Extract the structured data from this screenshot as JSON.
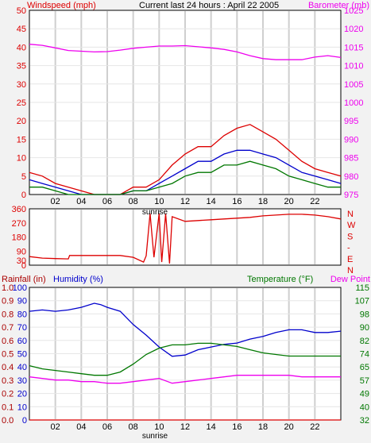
{
  "colors": {
    "red": "#dd0000",
    "magenta": "#ee00ee",
    "blue": "#0000cc",
    "green": "#007700",
    "dark_red": "#aa0000",
    "grid": "#cfcfcf"
  },
  "chart_data": [
    {
      "type": "line",
      "title": "Current last 24 hours : April 22 2005",
      "ylabel_left": "Windspeed (mph)",
      "ylabel_right": "Barometer (mb)",
      "x_ticks": [
        "02",
        "04",
        "06",
        "08",
        "10",
        "12",
        "14",
        "16",
        "18",
        "20",
        "22"
      ],
      "x_annotation": "sunrise",
      "ylim_left": [
        0,
        50
      ],
      "yticks_left": [
        0,
        5,
        10,
        15,
        20,
        25,
        30,
        35,
        40,
        45,
        50
      ],
      "ylim_right": [
        975,
        1025
      ],
      "yticks_right": [
        975,
        980,
        985,
        990,
        995,
        1000,
        1005,
        1010,
        1015,
        1020,
        1025
      ],
      "series": [
        {
          "axis": "right",
          "color": "magenta",
          "x": [
            0,
            1,
            2,
            3,
            4,
            5,
            6,
            7,
            8,
            9,
            10,
            11,
            12,
            13,
            14,
            15,
            16,
            17,
            18,
            19,
            20,
            21,
            22,
            23,
            24
          ],
          "values": [
            1015.8,
            1015.5,
            1014.8,
            1014.1,
            1013.9,
            1013.7,
            1013.8,
            1014.2,
            1014.7,
            1015.0,
            1015.3,
            1015.3,
            1015.4,
            1015.1,
            1014.8,
            1014.4,
            1013.7,
            1012.7,
            1011.9,
            1011.6,
            1011.6,
            1011.6,
            1012.3,
            1012.7,
            1012.2
          ]
        },
        {
          "axis": "left",
          "color": "red",
          "x": [
            0,
            1,
            2,
            3,
            4,
            5,
            6,
            7,
            8,
            9,
            10,
            11,
            12,
            13,
            14,
            15,
            16,
            17,
            18,
            19,
            20,
            21,
            22,
            23,
            24
          ],
          "values": [
            6,
            5,
            3,
            2,
            1,
            0,
            0,
            0,
            2,
            2,
            4,
            8,
            11,
            13,
            13,
            16,
            18,
            19,
            17,
            15,
            12,
            9,
            7,
            6,
            5
          ]
        },
        {
          "axis": "left",
          "color": "blue",
          "x": [
            0,
            1,
            2,
            3,
            4,
            5,
            6,
            7,
            8,
            9,
            10,
            11,
            12,
            13,
            14,
            15,
            16,
            17,
            18,
            19,
            20,
            21,
            22,
            23,
            24
          ],
          "values": [
            4,
            3,
            2,
            1,
            0,
            0,
            0,
            0,
            1,
            1,
            3,
            5,
            7,
            9,
            9,
            11,
            12,
            12,
            11,
            10,
            8,
            6,
            5,
            4,
            3
          ]
        },
        {
          "axis": "left",
          "color": "green",
          "x": [
            0,
            1,
            2,
            3,
            4,
            5,
            6,
            7,
            8,
            9,
            10,
            11,
            12,
            13,
            14,
            15,
            16,
            17,
            18,
            19,
            20,
            21,
            22,
            23,
            24
          ],
          "values": [
            2,
            2,
            1,
            0,
            0,
            0,
            0,
            0,
            1,
            1,
            2,
            3,
            5,
            6,
            6,
            8,
            8,
            9,
            8,
            7,
            5,
            4,
            3,
            2,
            2
          ]
        }
      ]
    },
    {
      "type": "line",
      "ylim": [
        0,
        360
      ],
      "yticks_left": [
        0,
        30,
        90,
        180,
        270,
        360
      ],
      "right_labels": [
        "N",
        "W",
        "S",
        "-",
        "E",
        "N"
      ],
      "series": [
        {
          "color": "red",
          "x": [
            0,
            1,
            2,
            3,
            3.1,
            4,
            5,
            6,
            7,
            8,
            8.8,
            9,
            9.3,
            9.6,
            10,
            10.2,
            10.5,
            10.8,
            11,
            12,
            13,
            14,
            15,
            16,
            17,
            18,
            19,
            20,
            21,
            22,
            23,
            24
          ],
          "values": [
            55,
            45,
            42,
            40,
            62,
            62,
            62,
            62,
            62,
            50,
            20,
            60,
            330,
            50,
            330,
            20,
            330,
            10,
            310,
            280,
            285,
            290,
            295,
            300,
            305,
            315,
            320,
            325,
            325,
            320,
            310,
            295
          ]
        }
      ]
    },
    {
      "type": "line",
      "ylabel_left": "Rainfall (in)",
      "ylabel_humidity": "Humidity (%)",
      "ylabel_temp": "Temperature (°F)",
      "ylabel_dew": "Dew Point",
      "x_ticks": [
        "02",
        "04",
        "06",
        "08",
        "10",
        "12",
        "14",
        "16",
        "18",
        "20",
        "22"
      ],
      "x_annotation": "sunrise",
      "rain_ticks": [
        "0.0",
        "0.1",
        "0.2",
        "0.3",
        "0.4",
        "0.5",
        "0.6",
        "0.7",
        "0.8",
        "0.9",
        "1.0"
      ],
      "humidity_ticks": [
        0,
        10,
        20,
        30,
        40,
        50,
        60,
        70,
        80,
        90,
        100
      ],
      "temp_ticks": [
        32,
        40,
        49,
        57,
        65,
        74,
        82,
        90,
        98,
        107,
        115
      ],
      "ylim_temp": [
        32,
        115
      ],
      "series": [
        {
          "name": "Humidity",
          "axis": "humidity",
          "color": "blue",
          "x": [
            0,
            1,
            2,
            3,
            4,
            5,
            5.5,
            6,
            7,
            8,
            9,
            10,
            11,
            12,
            13,
            14,
            15,
            16,
            17,
            18,
            19,
            20,
            21,
            22,
            23,
            24
          ],
          "values": [
            82,
            83,
            82,
            83,
            85,
            88,
            87,
            85,
            82,
            72,
            64,
            55,
            48,
            49,
            53,
            55,
            57,
            58,
            61,
            63,
            66,
            68,
            68,
            66,
            66,
            67
          ]
        },
        {
          "name": "Temperature",
          "axis": "temp",
          "color": "green",
          "x": [
            0,
            1,
            2,
            3,
            4,
            5,
            6,
            7,
            8,
            9,
            10,
            11,
            12,
            13,
            14,
            15,
            16,
            17,
            18,
            19,
            20,
            21,
            22,
            23,
            24
          ],
          "values": [
            66,
            64,
            63,
            62,
            61,
            60,
            60,
            62,
            67,
            73,
            77,
            79,
            79,
            80,
            80,
            79,
            78,
            76,
            74,
            73,
            72,
            72,
            72,
            72,
            72
          ]
        },
        {
          "name": "Dew Point",
          "axis": "temp",
          "color": "magenta",
          "x": [
            0,
            1,
            2,
            3,
            4,
            5,
            6,
            7,
            8,
            9,
            10,
            11,
            12,
            13,
            14,
            15,
            16,
            17,
            18,
            19,
            20,
            21,
            22,
            23,
            24
          ],
          "values": [
            59,
            58,
            57,
            57,
            56,
            56,
            55,
            55,
            56,
            57,
            58,
            55,
            56,
            57,
            58,
            59,
            60,
            60,
            60,
            60,
            60,
            59,
            59,
            59,
            59
          ]
        },
        {
          "name": "Rainfall",
          "axis": "rain",
          "color": "red",
          "x": [
            0,
            24
          ],
          "values": [
            0,
            0
          ]
        }
      ]
    }
  ]
}
